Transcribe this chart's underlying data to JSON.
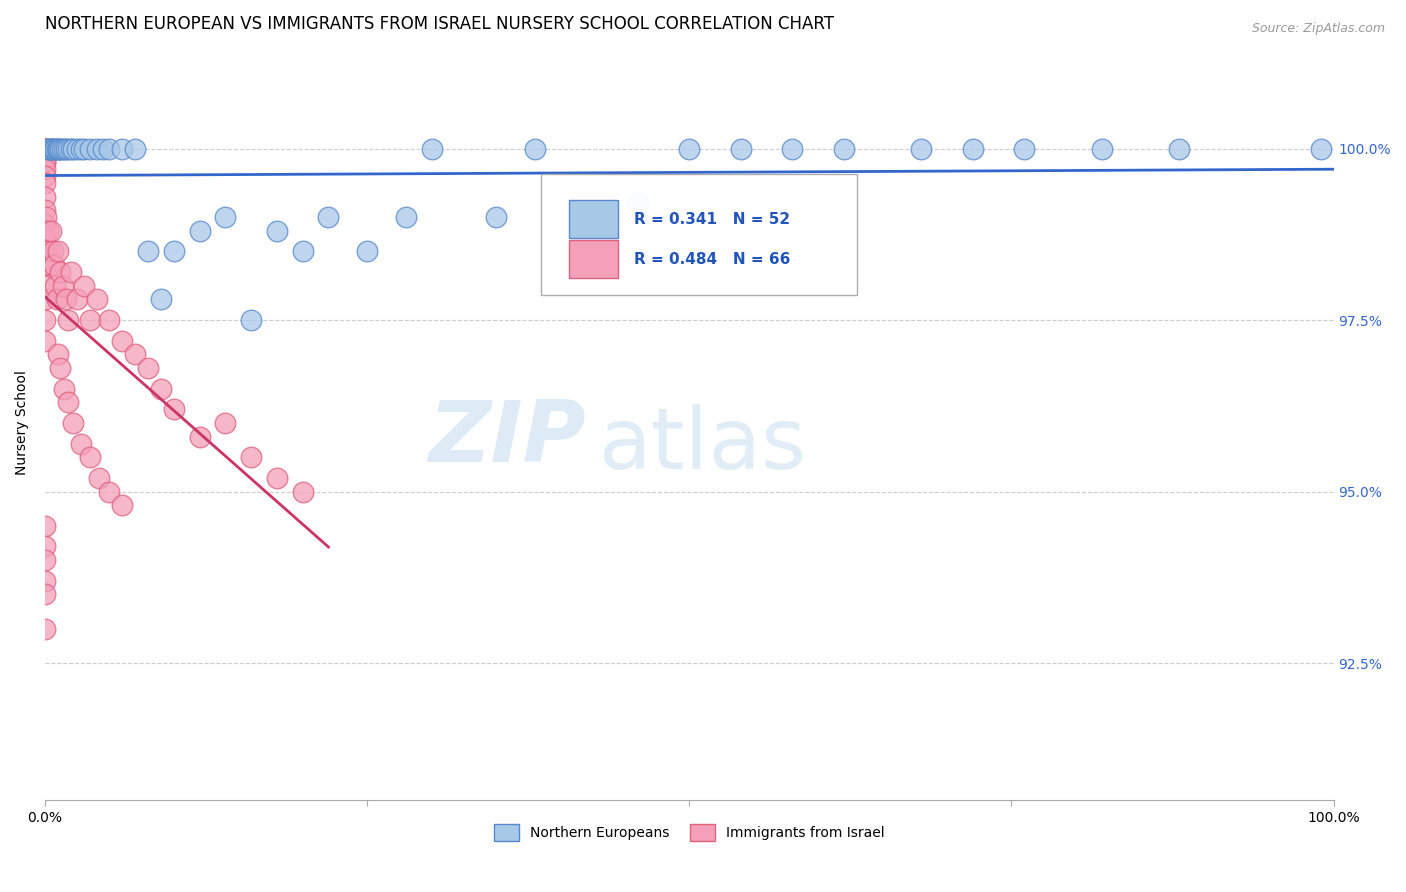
{
  "title": "NORTHERN EUROPEAN VS IMMIGRANTS FROM ISRAEL NURSERY SCHOOL CORRELATION CHART",
  "source": "Source: ZipAtlas.com",
  "ylabel": "Nursery School",
  "xlim": [
    0.0,
    1.0
  ],
  "ylim": [
    0.905,
    1.015
  ],
  "yticks": [
    0.925,
    0.95,
    0.975,
    1.0
  ],
  "ytick_labels": [
    "92.5%",
    "95.0%",
    "97.5%",
    "100.0%"
  ],
  "xticks": [
    0.0,
    0.25,
    0.5,
    0.75,
    1.0
  ],
  "xtick_labels": [
    "0.0%",
    "",
    "",
    "",
    "100.0%"
  ],
  "blue_color": "#a8c8e8",
  "pink_color": "#f4a0b8",
  "blue_edge": "#5588cc",
  "pink_edge": "#e06080",
  "trend_blue": "#3366cc",
  "trend_pink": "#cc3366",
  "background": "#ffffff",
  "R_blue": 0.341,
  "N_blue": 52,
  "R_pink": 0.484,
  "N_pink": 66,
  "legend_label_blue": "Northern Europeans",
  "legend_label_pink": "Immigrants from Israel",
  "blue_x": [
    0.002,
    0.003,
    0.004,
    0.005,
    0.006,
    0.007,
    0.008,
    0.009,
    0.01,
    0.011,
    0.012,
    0.013,
    0.015,
    0.016,
    0.018,
    0.02,
    0.022,
    0.025,
    0.028,
    0.03,
    0.035,
    0.04,
    0.045,
    0.05,
    0.06,
    0.07,
    0.08,
    0.09,
    0.1,
    0.12,
    0.14,
    0.16,
    0.18,
    0.2,
    0.22,
    0.25,
    0.28,
    0.3,
    0.35,
    0.38,
    0.42,
    0.46,
    0.5,
    0.54,
    0.58,
    0.62,
    0.68,
    0.72,
    0.76,
    0.82,
    0.88,
    0.99
  ],
  "blue_y": [
    1.0,
    1.0,
    1.0,
    1.0,
    1.0,
    1.0,
    1.0,
    1.0,
    1.0,
    1.0,
    1.0,
    1.0,
    1.0,
    1.0,
    1.0,
    1.0,
    1.0,
    1.0,
    1.0,
    1.0,
    1.0,
    1.0,
    1.0,
    1.0,
    1.0,
    1.0,
    0.985,
    0.978,
    0.985,
    0.988,
    0.99,
    0.975,
    0.988,
    0.985,
    0.99,
    0.985,
    0.99,
    1.0,
    0.99,
    1.0,
    0.985,
    0.992,
    1.0,
    1.0,
    1.0,
    1.0,
    1.0,
    1.0,
    1.0,
    1.0,
    1.0,
    1.0
  ],
  "pink_x": [
    0.0,
    0.0,
    0.0,
    0.0,
    0.0,
    0.0,
    0.0,
    0.0,
    0.0,
    0.0,
    0.0,
    0.0,
    0.0,
    0.0,
    0.0,
    0.0,
    0.0,
    0.0,
    0.0,
    0.0,
    0.001,
    0.002,
    0.003,
    0.004,
    0.005,
    0.006,
    0.007,
    0.008,
    0.009,
    0.01,
    0.012,
    0.014,
    0.016,
    0.018,
    0.02,
    0.025,
    0.03,
    0.035,
    0.04,
    0.05,
    0.06,
    0.07,
    0.08,
    0.09,
    0.1,
    0.12,
    0.14,
    0.16,
    0.18,
    0.2,
    0.01,
    0.012,
    0.015,
    0.018,
    0.022,
    0.028,
    0.035,
    0.042,
    0.05,
    0.06,
    0.0,
    0.0,
    0.0,
    0.0,
    0.0,
    0.0
  ],
  "pink_y": [
    1.0,
    1.0,
    1.0,
    1.0,
    1.0,
    0.998,
    0.998,
    0.997,
    0.996,
    0.995,
    0.993,
    0.991,
    0.989,
    0.987,
    0.985,
    0.983,
    0.98,
    0.978,
    0.975,
    0.972,
    0.99,
    0.988,
    0.985,
    0.983,
    0.988,
    0.985,
    0.983,
    0.98,
    0.978,
    0.985,
    0.982,
    0.98,
    0.978,
    0.975,
    0.982,
    0.978,
    0.98,
    0.975,
    0.978,
    0.975,
    0.972,
    0.97,
    0.968,
    0.965,
    0.962,
    0.958,
    0.96,
    0.955,
    0.952,
    0.95,
    0.97,
    0.968,
    0.965,
    0.963,
    0.96,
    0.957,
    0.955,
    0.952,
    0.95,
    0.948,
    0.945,
    0.942,
    0.94,
    0.937,
    0.935,
    0.93
  ],
  "watermark_zip": "ZIP",
  "watermark_atlas": "atlas",
  "grid_color": "#cccccc",
  "title_fontsize": 12,
  "axis_fontsize": 10,
  "legend_fontsize": 11
}
